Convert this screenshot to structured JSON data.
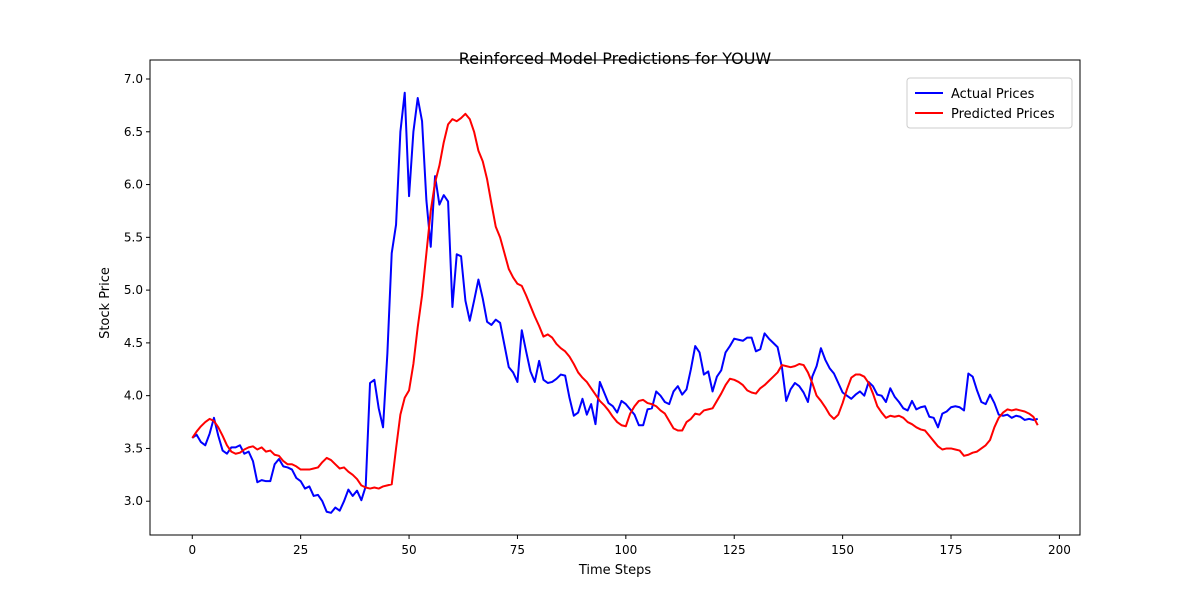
{
  "chart_data": {
    "type": "line",
    "title": "Reinforced Model Predictions for YOUW",
    "x_label": "Time Steps",
    "y_label": "Stock Price",
    "x": [
      0,
      1,
      2,
      3,
      4,
      5,
      6,
      7,
      8,
      9,
      10,
      11,
      12,
      13,
      14,
      15,
      16,
      17,
      18,
      19,
      20,
      21,
      22,
      23,
      24,
      25,
      26,
      27,
      28,
      29,
      30,
      31,
      32,
      33,
      34,
      35,
      36,
      37,
      38,
      39,
      40,
      41,
      42,
      43,
      44,
      45,
      46,
      47,
      48,
      49,
      50,
      51,
      52,
      53,
      54,
      55,
      56,
      57,
      58,
      59,
      60,
      61,
      62,
      63,
      64,
      65,
      66,
      67,
      68,
      69,
      70,
      71,
      72,
      73,
      74,
      75,
      76,
      77,
      78,
      79,
      80,
      81,
      82,
      83,
      84,
      85,
      86,
      87,
      88,
      89,
      90,
      91,
      92,
      93,
      94,
      95,
      96,
      97,
      98,
      99,
      100,
      101,
      102,
      103,
      104,
      105,
      106,
      107,
      108,
      109,
      110,
      111,
      112,
      113,
      114,
      115,
      116,
      117,
      118,
      119,
      120,
      121,
      122,
      123,
      124,
      125,
      126,
      127,
      128,
      129,
      130,
      131,
      132,
      133,
      134,
      135,
      136,
      137,
      138,
      139,
      140,
      141,
      142,
      143,
      144,
      145,
      146,
      147,
      148,
      149,
      150,
      151,
      152,
      153,
      154,
      155,
      156,
      157,
      158,
      159,
      160,
      161,
      162,
      163,
      164,
      165,
      166,
      167,
      168,
      169,
      170,
      171,
      172,
      173,
      174,
      175,
      176,
      177,
      178,
      179,
      180,
      181,
      182,
      183,
      184,
      185,
      186,
      187,
      188,
      189,
      190,
      191,
      192,
      193,
      194,
      195
    ],
    "series": [
      {
        "name": "Actual Prices",
        "color": "#0000ff",
        "values": [
          3.6,
          3.63,
          3.56,
          3.53,
          3.64,
          3.79,
          3.62,
          3.48,
          3.45,
          3.51,
          3.51,
          3.53,
          3.45,
          3.47,
          3.38,
          3.18,
          3.2,
          3.19,
          3.19,
          3.35,
          3.4,
          3.33,
          3.32,
          3.3,
          3.22,
          3.19,
          3.12,
          3.14,
          3.05,
          3.06,
          3.0,
          2.9,
          2.89,
          2.94,
          2.91,
          3.0,
          3.11,
          3.05,
          3.1,
          3.01,
          3.14,
          4.12,
          4.15,
          3.88,
          3.7,
          4.4,
          5.35,
          5.62,
          6.5,
          6.87,
          5.89,
          6.5,
          6.82,
          6.6,
          5.85,
          5.41,
          6.08,
          5.81,
          5.9,
          5.84,
          4.84,
          5.34,
          5.32,
          4.9,
          4.71,
          4.9,
          5.1,
          4.92,
          4.7,
          4.67,
          4.72,
          4.69,
          4.48,
          4.27,
          4.22,
          4.13,
          4.62,
          4.42,
          4.23,
          4.13,
          4.33,
          4.15,
          4.12,
          4.13,
          4.16,
          4.2,
          4.19,
          3.98,
          3.81,
          3.84,
          3.97,
          3.82,
          3.92,
          3.73,
          4.13,
          4.03,
          3.93,
          3.9,
          3.84,
          3.95,
          3.92,
          3.87,
          3.82,
          3.72,
          3.72,
          3.87,
          3.88,
          4.04,
          4.0,
          3.94,
          3.92,
          4.04,
          4.09,
          4.01,
          4.06,
          4.25,
          4.47,
          4.41,
          4.2,
          4.23,
          4.04,
          4.18,
          4.24,
          4.41,
          4.47,
          4.54,
          4.53,
          4.52,
          4.55,
          4.55,
          4.42,
          4.44,
          4.59,
          4.54,
          4.5,
          4.46,
          4.27,
          3.95,
          4.06,
          4.12,
          4.09,
          4.03,
          3.94,
          4.18,
          4.28,
          4.45,
          4.34,
          4.26,
          4.21,
          4.12,
          4.03,
          4.0,
          3.97,
          4.01,
          4.04,
          4.0,
          4.13,
          4.09,
          4.01,
          4.0,
          3.94,
          4.07,
          3.99,
          3.94,
          3.88,
          3.86,
          3.95,
          3.87,
          3.89,
          3.9,
          3.8,
          3.79,
          3.7,
          3.83,
          3.85,
          3.89,
          3.9,
          3.89,
          3.86,
          4.21,
          4.18,
          4.05,
          3.94,
          3.92,
          4.01,
          3.93,
          3.82,
          3.81,
          3.82,
          3.79,
          3.81,
          3.8,
          3.77,
          3.78,
          3.77,
          3.78
        ]
      },
      {
        "name": "Predicted Prices",
        "color": "#ff0000",
        "values": [
          3.6,
          3.66,
          3.71,
          3.75,
          3.78,
          3.76,
          3.7,
          3.62,
          3.53,
          3.47,
          3.45,
          3.46,
          3.49,
          3.51,
          3.52,
          3.49,
          3.51,
          3.47,
          3.48,
          3.44,
          3.43,
          3.38,
          3.35,
          3.35,
          3.33,
          3.3,
          3.3,
          3.3,
          3.31,
          3.32,
          3.37,
          3.41,
          3.39,
          3.35,
          3.31,
          3.32,
          3.28,
          3.25,
          3.21,
          3.15,
          3.13,
          3.12,
          3.13,
          3.12,
          3.14,
          3.15,
          3.16,
          3.5,
          3.82,
          3.98,
          4.05,
          4.3,
          4.65,
          4.95,
          5.35,
          5.75,
          6.02,
          6.18,
          6.4,
          6.57,
          6.62,
          6.6,
          6.63,
          6.67,
          6.62,
          6.5,
          6.32,
          6.22,
          6.05,
          5.82,
          5.6,
          5.5,
          5.35,
          5.2,
          5.12,
          5.06,
          5.04,
          4.95,
          4.85,
          4.75,
          4.66,
          4.56,
          4.58,
          4.55,
          4.49,
          4.45,
          4.42,
          4.37,
          4.3,
          4.22,
          4.17,
          4.13,
          4.07,
          4.01,
          3.95,
          3.91,
          3.86,
          3.8,
          3.75,
          3.72,
          3.71,
          3.83,
          3.9,
          3.95,
          3.96,
          3.93,
          3.92,
          3.9,
          3.86,
          3.83,
          3.76,
          3.69,
          3.67,
          3.67,
          3.75,
          3.78,
          3.83,
          3.82,
          3.86,
          3.87,
          3.88,
          3.95,
          4.02,
          4.1,
          4.16,
          4.15,
          4.13,
          4.1,
          4.05,
          4.03,
          4.02,
          4.07,
          4.1,
          4.14,
          4.18,
          4.22,
          4.29,
          4.28,
          4.27,
          4.28,
          4.3,
          4.29,
          4.22,
          4.12,
          4.0,
          3.95,
          3.89,
          3.82,
          3.78,
          3.82,
          3.93,
          4.06,
          4.17,
          4.2,
          4.2,
          4.18,
          4.12,
          4.02,
          3.9,
          3.84,
          3.79,
          3.81,
          3.8,
          3.81,
          3.79,
          3.75,
          3.73,
          3.7,
          3.68,
          3.67,
          3.62,
          3.57,
          3.52,
          3.49,
          3.5,
          3.5,
          3.49,
          3.48,
          3.43,
          3.44,
          3.46,
          3.47,
          3.5,
          3.53,
          3.58,
          3.7,
          3.79,
          3.84,
          3.87,
          3.86,
          3.87,
          3.86,
          3.85,
          3.83,
          3.8,
          3.72
        ]
      }
    ],
    "xlim": [
      -9.75,
      204.75
    ],
    "xticks": [
      0,
      25,
      50,
      75,
      100,
      125,
      150,
      175,
      200
    ],
    "ylim": [
      2.68,
      7.18
    ],
    "yticks": [
      {
        "value": 3,
        "label": "3.0"
      },
      3.5,
      {
        "value": 4,
        "label": "4.0"
      },
      4.5,
      {
        "value": 5,
        "label": "5.0"
      },
      5.5,
      {
        "value": 6,
        "label": "6.0"
      },
      6.5,
      {
        "value": 7,
        "label": "7.0"
      }
    ],
    "legend": "upper right"
  }
}
